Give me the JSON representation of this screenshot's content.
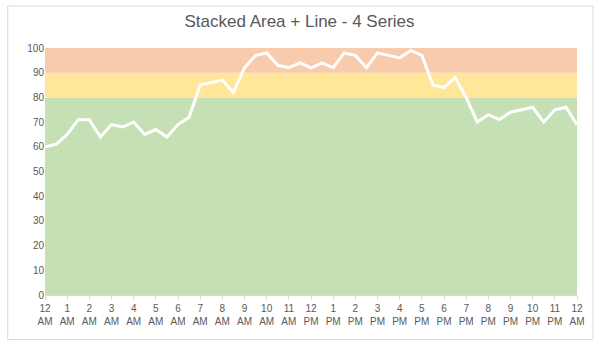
{
  "chart_data": {
    "type": "area",
    "title": "Stacked Area + Line - 4 Series",
    "categories": [
      "12 AM",
      null,
      "1 AM",
      null,
      "2 AM",
      null,
      "3 AM",
      null,
      "4 AM",
      null,
      "5 AM",
      null,
      "6 AM",
      null,
      "7 AM",
      null,
      "8 AM",
      null,
      "9 AM",
      null,
      "10 AM",
      null,
      "11 AM",
      null,
      "12 PM",
      null,
      "1 PM",
      null,
      "2 PM",
      null,
      "3 PM",
      null,
      "4 PM",
      null,
      "5 PM",
      null,
      "6 PM",
      null,
      "7 PM",
      null,
      "8 PM",
      null,
      "9 PM",
      null,
      "10 PM",
      null,
      "11 PM",
      null,
      "12 AM"
    ],
    "series": [
      {
        "type": "area",
        "color": "#c5e0b4",
        "values": [
          80,
          80,
          80,
          80,
          80,
          80,
          80,
          80,
          80,
          80,
          80,
          80,
          80,
          80,
          80,
          80,
          80,
          80,
          80,
          80,
          80,
          80,
          80,
          80,
          80,
          80,
          80,
          80,
          80,
          80,
          80,
          80,
          80,
          80,
          80,
          80,
          80,
          80,
          80,
          80,
          80,
          80,
          80,
          80,
          80,
          80,
          80,
          80,
          80
        ]
      },
      {
        "type": "area",
        "color": "#ffe699",
        "values": [
          10,
          10,
          10,
          10,
          10,
          10,
          10,
          10,
          10,
          10,
          10,
          10,
          10,
          10,
          10,
          10,
          10,
          10,
          10,
          10,
          10,
          10,
          10,
          10,
          10,
          10,
          10,
          10,
          10,
          10,
          10,
          10,
          10,
          10,
          10,
          10,
          10,
          10,
          10,
          10,
          10,
          10,
          10,
          10,
          10,
          10,
          10,
          10,
          10
        ]
      },
      {
        "type": "area",
        "color": "#f8cbad",
        "values": [
          10,
          10,
          10,
          10,
          10,
          10,
          10,
          10,
          10,
          10,
          10,
          10,
          10,
          10,
          10,
          10,
          10,
          10,
          10,
          10,
          10,
          10,
          10,
          10,
          10,
          10,
          10,
          10,
          10,
          10,
          10,
          10,
          10,
          10,
          10,
          10,
          10,
          10,
          10,
          10,
          10,
          10,
          10,
          10,
          10,
          10,
          10,
          10,
          10
        ]
      },
      {
        "type": "line",
        "color": "#ffffff",
        "values": [
          60,
          61,
          65,
          71,
          71,
          64,
          69,
          68,
          70,
          65,
          67,
          64,
          69,
          72,
          85,
          86,
          87,
          82,
          92,
          97,
          98,
          93,
          92,
          94,
          92,
          94,
          92,
          98,
          97,
          92,
          98,
          97,
          96,
          99,
          97,
          85,
          84,
          88,
          80,
          70,
          73,
          71,
          74,
          75,
          76,
          70,
          75,
          76,
          69
        ]
      }
    ],
    "stacked": true,
    "grid": false,
    "ylim": [
      0,
      100
    ],
    "yticks": [
      0,
      10,
      20,
      30,
      40,
      50,
      60,
      70,
      80,
      90,
      100
    ]
  }
}
